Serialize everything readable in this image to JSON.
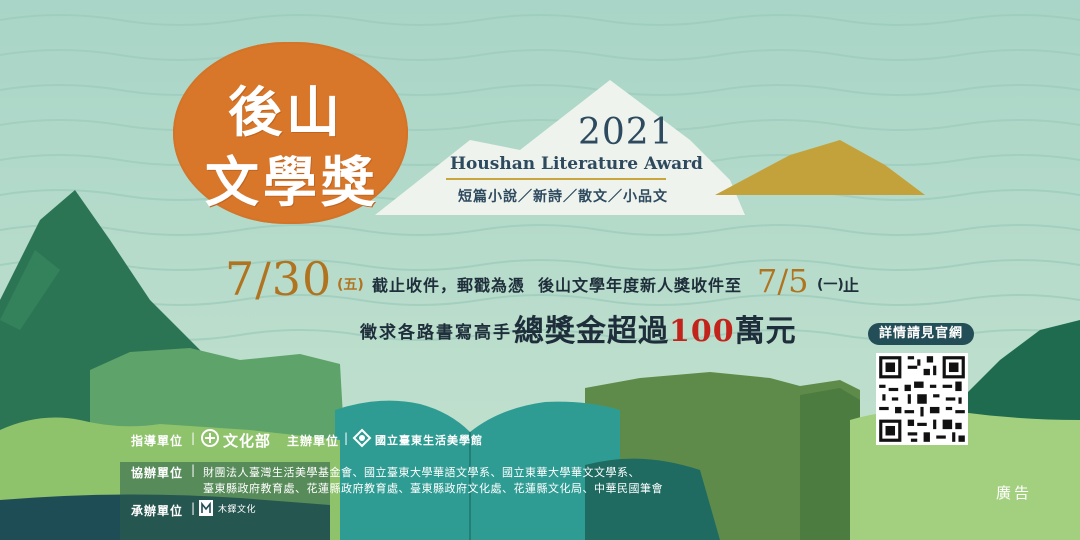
{
  "logo": {
    "line1": "後山",
    "line2": "文學獎"
  },
  "award": {
    "year": "2021",
    "name_en": "Houshan Literature Award",
    "genres": "短篇小說／新詩／散文／小品文"
  },
  "deadline": {
    "date": "7/30",
    "weekday": "(五)",
    "text": "截止收件，郵戳為憑",
    "newcomer_text": "後山文學年度新人獎收件至",
    "newcomer_date": "7/5",
    "newcomer_weekday": "(一)",
    "newcomer_end": "止"
  },
  "prize": {
    "call": "徵求各路書寫高手一",
    "lead": "總獎金超過",
    "amount": "100",
    "unit": "萬元"
  },
  "qr": {
    "label": "詳情請見官網"
  },
  "organizers": {
    "guide_label": "指導單位",
    "guide_name": "文化部",
    "host_label": "主辦單位",
    "host_name": "國立臺東生活美學館",
    "co_label": "協辦單位",
    "co_line1": "財團法人臺灣生活美學基金會、國立臺東大學華語文學系、國立東華大學華文文學系、",
    "co_line2": "臺東縣政府教育處、花蓮縣政府教育處、臺東縣政府文化處、花蓮縣文化局、中華民國筆會",
    "exec_label": "承辦單位",
    "exec_name": "木鐸文化"
  },
  "ad_label": "廣告",
  "colors": {
    "logo_orange": "#d8772a",
    "date_gold": "#b07420",
    "prize_red": "#c2241c",
    "title_blue": "#2e4a5f",
    "qr_badge": "#244e57"
  }
}
